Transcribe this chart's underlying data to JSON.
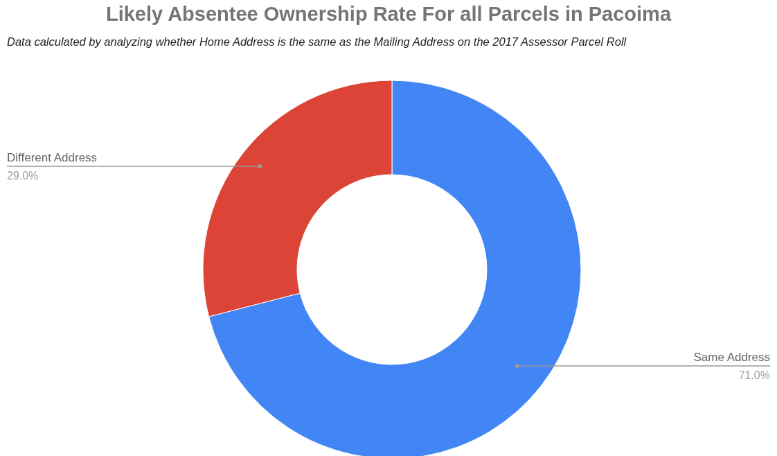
{
  "chart_data": {
    "type": "donut",
    "title": "Likely Absentee Ownership Rate For all Parcels in Pacoima",
    "subtitle": "Data calculated by analyzing whether Home Address is the same as the Mailing Address on the 2017 Assessor Parcel Roll",
    "categories": [
      "Same Address",
      "Different Address"
    ],
    "values": [
      71.0,
      29.0
    ],
    "colors": [
      "#4285f4",
      "#db4437"
    ],
    "value_labels": [
      "71.0%",
      "29.0%"
    ],
    "legend": false
  }
}
